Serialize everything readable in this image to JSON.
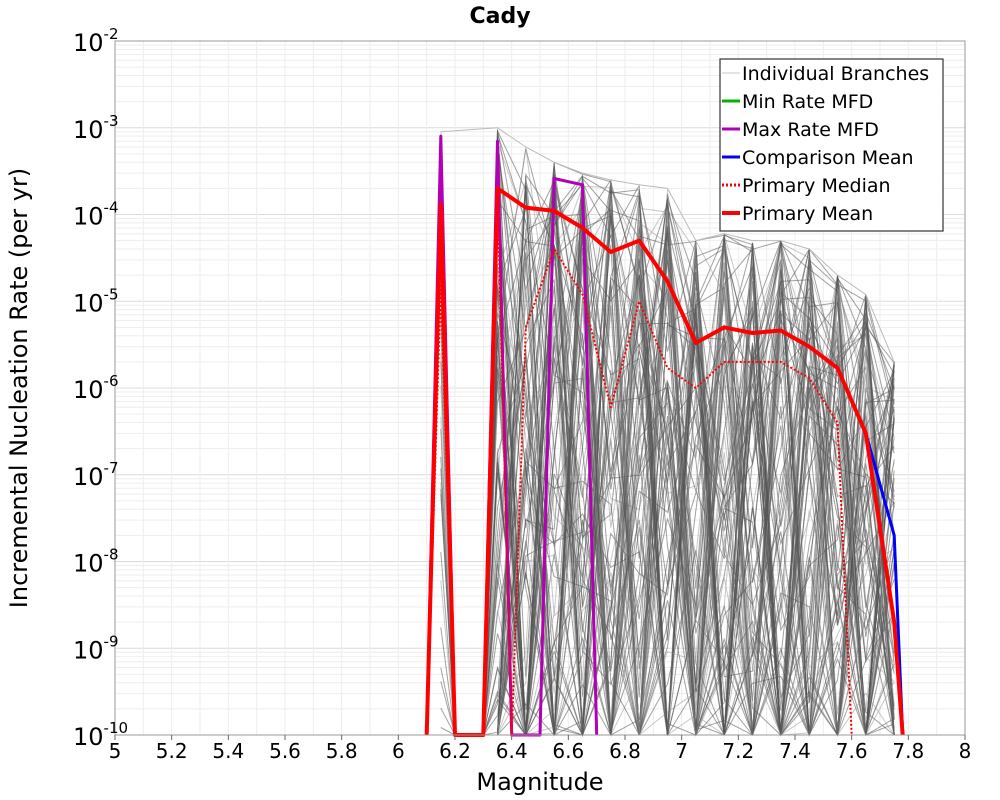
{
  "chart_data": {
    "type": "line",
    "title": "Cady",
    "xlabel": "Magnitude",
    "ylabel": "Incremental Nucleation Rate (per yr)",
    "xlim": [
      5,
      8
    ],
    "ylim_log10": [
      -10,
      -2
    ],
    "yscale": "log",
    "x_ticks": [
      "5",
      "5.2",
      "5.4",
      "5.6",
      "5.8",
      "6",
      "6.2",
      "6.4",
      "6.6",
      "6.8",
      "7",
      "7.2",
      "7.4",
      "7.6",
      "7.8",
      "8"
    ],
    "y_ticks": [
      {
        "base": "10",
        "exp": "-2"
      },
      {
        "base": "10",
        "exp": "-3"
      },
      {
        "base": "10",
        "exp": "-4"
      },
      {
        "base": "10",
        "exp": "-5"
      },
      {
        "base": "10",
        "exp": "-6"
      },
      {
        "base": "10",
        "exp": "-7"
      },
      {
        "base": "10",
        "exp": "-8"
      },
      {
        "base": "10",
        "exp": "-9"
      },
      {
        "base": "10",
        "exp": "-10"
      }
    ],
    "grid": true,
    "legend_position": "top-right",
    "legend": [
      {
        "label": "Individual Branches",
        "color": "#c8c8c8",
        "style": "solid"
      },
      {
        "label": "Min Rate MFD",
        "color": "#00b400",
        "style": "solid"
      },
      {
        "label": "Max Rate MFD",
        "color": "#b400b4",
        "style": "solid"
      },
      {
        "label": "Comparison Mean",
        "color": "#0000ff",
        "style": "solid"
      },
      {
        "label": " Primary Median",
        "color": "#ff0000",
        "style": "dotted"
      },
      {
        "label": "Primary Mean",
        "color": "#ff0000",
        "style": "solid"
      }
    ],
    "series": [
      {
        "name": "Individual Branches (envelope upper bound)",
        "color": "#555555",
        "x": [
          6.15,
          6.35,
          6.45,
          6.55,
          6.65,
          6.75,
          6.85,
          6.95,
          7.05,
          7.15,
          7.25,
          7.35,
          7.45,
          7.55,
          7.65,
          7.75
        ],
        "values": [
          0.0009,
          0.001,
          0.0006,
          0.0004,
          0.0003,
          0.00025,
          0.00022,
          0.0002,
          5e-05,
          6e-05,
          5e-05,
          5e-05,
          4e-05,
          2e-05,
          1.2e-05,
          2e-06
        ]
      },
      {
        "name": "Max Rate MFD",
        "color": "#b400b4",
        "x": [
          6.1,
          6.15,
          6.2,
          6.3,
          6.35,
          6.4,
          6.45,
          6.5,
          6.55,
          6.65,
          6.7
        ],
        "values": [
          1e-10,
          0.0008,
          1e-10,
          1e-10,
          0.0007,
          1e-10,
          1e-10,
          1e-10,
          0.00026,
          0.00022,
          1e-10
        ]
      },
      {
        "name": "Primary Median",
        "color": "#ff0000",
        "x": [
          6.1,
          6.15,
          6.2,
          6.3,
          6.35,
          6.4,
          6.45,
          6.55,
          6.65,
          6.75,
          6.85,
          6.95,
          7.05,
          7.15,
          7.25,
          7.35,
          7.45,
          7.55,
          7.6
        ],
        "values": [
          1e-10,
          1.5e-05,
          1e-10,
          1e-10,
          0.00017,
          1e-10,
          5e-06,
          4e-05,
          1.2e-05,
          6e-07,
          1e-05,
          1.7e-06,
          1e-06,
          2e-06,
          2e-06,
          2e-06,
          1.3e-06,
          4e-07,
          1e-10
        ]
      },
      {
        "name": "Comparison Mean",
        "color": "#0000ff",
        "x": [
          7.65,
          7.75,
          7.78
        ],
        "values": [
          3e-07,
          2e-08,
          1e-10
        ]
      },
      {
        "name": "Primary Mean",
        "color": "#ff0000",
        "x": [
          6.1,
          6.15,
          6.2,
          6.3,
          6.35,
          6.45,
          6.55,
          6.65,
          6.75,
          6.85,
          6.95,
          7.05,
          7.15,
          7.25,
          7.35,
          7.45,
          7.55,
          7.65,
          7.75,
          7.78
        ],
        "values": [
          1e-10,
          0.00013,
          1e-10,
          1e-10,
          0.0002,
          0.00012,
          0.00011,
          7e-05,
          3.7e-05,
          5e-05,
          1.7e-05,
          3.3e-06,
          5e-06,
          4.3e-06,
          4.6e-06,
          3e-06,
          1.7e-06,
          3e-07,
          2e-09,
          1e-10
        ]
      }
    ]
  }
}
